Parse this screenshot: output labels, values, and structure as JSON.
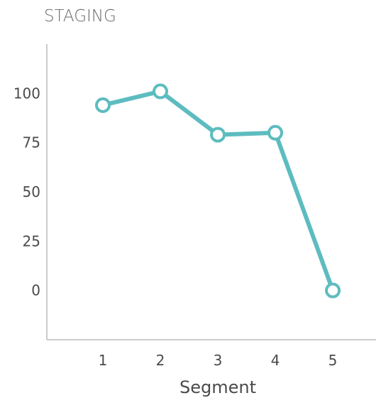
{
  "chart_data": {
    "type": "line",
    "title": "STAGING",
    "xlabel": "Segment",
    "ylabel": "",
    "x": [
      1,
      2,
      3,
      4,
      5
    ],
    "series": [
      {
        "values": [
          94,
          101,
          79,
          80,
          0
        ]
      }
    ],
    "y_ticks": [
      0,
      25,
      50,
      75,
      100
    ],
    "x_ticks": [
      1,
      2,
      3,
      4,
      5
    ],
    "ylim": [
      -25,
      125
    ],
    "xlim": [
      0,
      6
    ],
    "grid": false,
    "legend": "none",
    "colors": {
      "line": "#5dbcbf",
      "axis": "#cccccc",
      "text": "#4a4a4a",
      "title": "#6b6b6b"
    }
  }
}
